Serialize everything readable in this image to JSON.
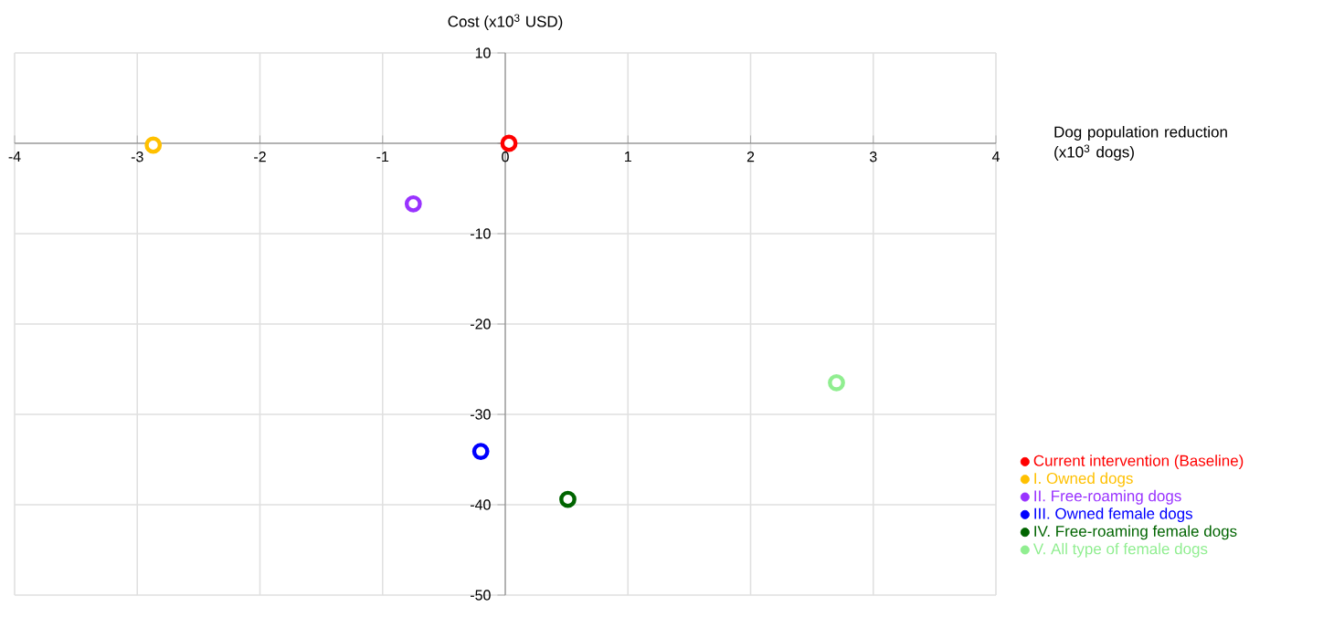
{
  "chart_data": {
    "type": "scatter",
    "xlabel": "Dog population reduction (x10$^{3}$ dogs)",
    "ylabel": "Cost (x10$^{3}$ USD)",
    "xlim": [
      -4,
      4
    ],
    "ylim": [
      -50,
      10
    ],
    "xticks": [
      -4,
      -3,
      -2,
      -1,
      0,
      1,
      2,
      3,
      4
    ],
    "yticks": [
      -50,
      -40,
      -30,
      -20,
      -10,
      {
        "value": 0,
        "label": null
      },
      10
    ],
    "grid": true,
    "legend": "bottom right",
    "marker": "circle",
    "series": [
      {
        "name": "Current intervention (Baseline)",
        "color": "#ff0000",
        "x": [
          0.03
        ],
        "values": [
          0
        ]
      },
      {
        "name": "I. Owned dogs",
        "color": "#ffc000",
        "x": [
          -2.87
        ],
        "values": [
          -0.2
        ]
      },
      {
        "name": "II. Free-roaming dogs",
        "color": "#9933ff",
        "x": [
          -0.75
        ],
        "values": [
          -6.7
        ]
      },
      {
        "name": "III. Owned female dogs",
        "color": "#0000ff",
        "x": [
          -0.2
        ],
        "values": [
          -34.1
        ]
      },
      {
        "name": "IV. Free-roaming female dogs",
        "color": "#006400",
        "x": [
          0.51
        ],
        "values": [
          -39.4
        ]
      },
      {
        "name": "V. All type of female dogs",
        "color": "#90ee90",
        "x": [
          2.7
        ],
        "values": [
          -26.5
        ]
      }
    ]
  }
}
